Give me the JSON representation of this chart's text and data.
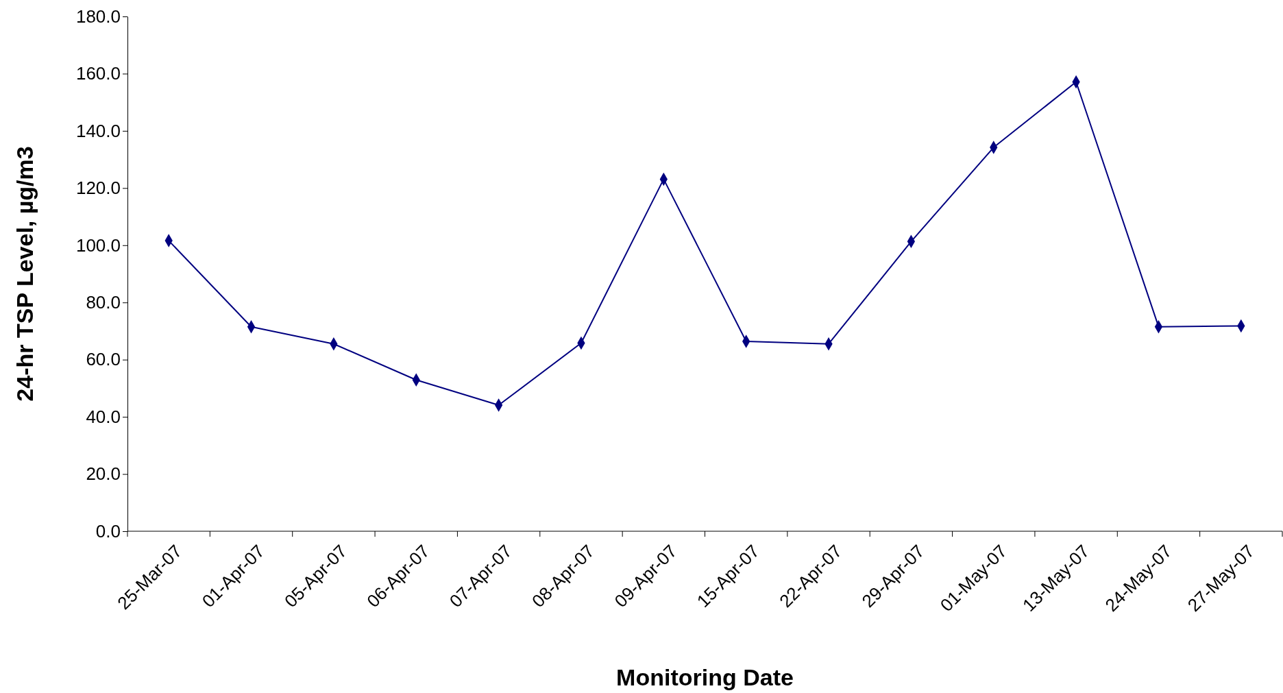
{
  "chart_data": {
    "type": "line",
    "xlabel": "Monitoring Date",
    "ylabel": "24-hr TSP Level, µg/m3",
    "categories": [
      "25-Mar-07",
      "01-Apr-07",
      "05-Apr-07",
      "06-Apr-07",
      "07-Apr-07",
      "08-Apr-07",
      "09-Apr-07",
      "15-Apr-07",
      "22-Apr-07",
      "29-Apr-07",
      "01-May-07",
      "13-May-07",
      "24-May-07",
      "27-May-07"
    ],
    "series": [
      {
        "color": "#000080",
        "values": [
          101.6,
          71.5,
          65.5,
          52.9,
          44.1,
          65.8,
          123.1,
          66.4,
          65.5,
          101.3,
          134.2,
          157.1,
          71.5,
          71.8
        ]
      }
    ],
    "ylim": [
      0,
      180
    ],
    "yticks": [
      {
        "value": 0,
        "label": "0.0"
      },
      {
        "value": 20,
        "label": "20.0"
      },
      {
        "value": 40,
        "label": "40.0"
      },
      {
        "value": 60,
        "label": "60.0"
      },
      {
        "value": 80,
        "label": "80.0"
      },
      {
        "value": 100,
        "label": "100.0"
      },
      {
        "value": 120,
        "label": "120.0"
      },
      {
        "value": 140,
        "label": "140.0"
      },
      {
        "value": 160,
        "label": "160.0"
      },
      {
        "value": 180,
        "label": "180.0"
      }
    ],
    "grid": false,
    "legend": false,
    "marker": "diamond",
    "line_style": "solid"
  }
}
